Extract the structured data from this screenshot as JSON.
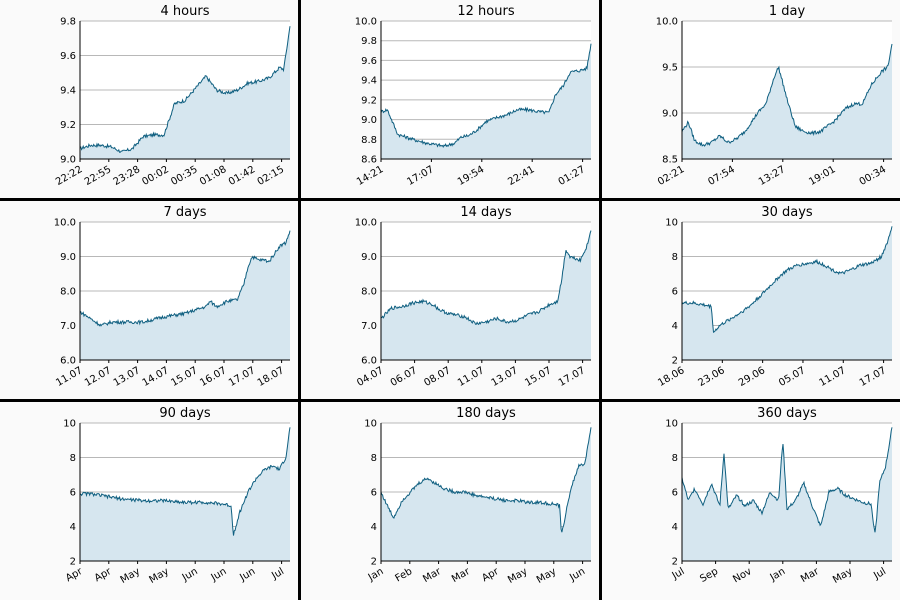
{
  "chart_data": [
    {
      "type": "area",
      "title": "4 hours",
      "ylim": [
        9.0,
        9.8
      ],
      "yticks": [
        "9.0",
        "9.2",
        "9.4",
        "9.6",
        "9.8"
      ],
      "xticks": [
        "22:22",
        "22:55",
        "23:28",
        "00:02",
        "00:35",
        "01:08",
        "01:42",
        "02:15"
      ],
      "x": [
        0,
        0.05,
        0.1,
        0.15,
        0.2,
        0.25,
        0.3,
        0.35,
        0.4,
        0.45,
        0.5,
        0.55,
        0.6,
        0.65,
        0.7,
        0.75,
        0.8,
        0.85,
        0.9,
        0.95,
        0.97,
        1.0
      ],
      "values": [
        9.06,
        9.08,
        9.08,
        9.07,
        9.04,
        9.06,
        9.13,
        9.14,
        9.14,
        9.32,
        9.34,
        9.41,
        9.48,
        9.4,
        9.38,
        9.4,
        9.44,
        9.45,
        9.47,
        9.53,
        9.52,
        9.77
      ]
    },
    {
      "type": "area",
      "title": "12 hours",
      "ylim": [
        8.6,
        10.0
      ],
      "yticks": [
        "8.6",
        "8.8",
        "9.0",
        "9.2",
        "9.4",
        "9.6",
        "9.8",
        "10.0"
      ],
      "xticks": [
        "14:21",
        "17:07",
        "19:54",
        "22:41",
        "01:27"
      ],
      "x": [
        0,
        0.03,
        0.08,
        0.15,
        0.22,
        0.3,
        0.35,
        0.38,
        0.42,
        0.46,
        0.5,
        0.55,
        0.6,
        0.65,
        0.7,
        0.75,
        0.8,
        0.83,
        0.87,
        0.9,
        0.95,
        0.98,
        1.0
      ],
      "values": [
        9.08,
        9.1,
        8.85,
        8.8,
        8.76,
        8.73,
        8.76,
        8.82,
        8.84,
        8.9,
        8.98,
        9.02,
        9.05,
        9.1,
        9.1,
        9.08,
        9.07,
        9.25,
        9.35,
        9.48,
        9.5,
        9.52,
        9.77
      ]
    },
    {
      "type": "area",
      "title": "1 day",
      "ylim": [
        8.5,
        10.0
      ],
      "yticks": [
        "8.5",
        "9.0",
        "9.5",
        "10.0"
      ],
      "xticks": [
        "02:21",
        "07:54",
        "13:27",
        "19:01",
        "00:34"
      ],
      "x": [
        0,
        0.03,
        0.06,
        0.1,
        0.14,
        0.18,
        0.22,
        0.26,
        0.3,
        0.36,
        0.4,
        0.44,
        0.46,
        0.5,
        0.54,
        0.58,
        0.62,
        0.66,
        0.72,
        0.78,
        0.82,
        0.86,
        0.9,
        0.95,
        0.98,
        1.0
      ],
      "values": [
        8.8,
        8.9,
        8.7,
        8.65,
        8.68,
        8.75,
        8.68,
        8.72,
        8.8,
        9.0,
        9.1,
        9.4,
        9.5,
        9.15,
        8.85,
        8.8,
        8.78,
        8.8,
        8.9,
        9.05,
        9.1,
        9.1,
        9.3,
        9.45,
        9.5,
        9.75
      ]
    },
    {
      "type": "area",
      "title": "7 days",
      "ylim": [
        6.0,
        10.0
      ],
      "yticks": [
        "6.0",
        "7.0",
        "8.0",
        "9.0",
        "10.0"
      ],
      "xticks": [
        "11.07",
        "12.07",
        "13.07",
        "14.07",
        "15.07",
        "16.07",
        "17.07",
        "18.07"
      ],
      "x": [
        0,
        0.05,
        0.1,
        0.15,
        0.2,
        0.3,
        0.4,
        0.5,
        0.55,
        0.6,
        0.62,
        0.65,
        0.7,
        0.75,
        0.78,
        0.8,
        0.82,
        0.85,
        0.88,
        0.9,
        0.95,
        0.98,
        1.0
      ],
      "values": [
        7.4,
        7.2,
        7.0,
        7.1,
        7.1,
        7.1,
        7.25,
        7.35,
        7.45,
        7.55,
        7.7,
        7.55,
        7.7,
        7.75,
        8.2,
        8.7,
        9.0,
        8.9,
        8.9,
        8.85,
        9.3,
        9.4,
        9.75
      ]
    },
    {
      "type": "area",
      "title": "14 days",
      "ylim": [
        6.0,
        10.0
      ],
      "yticks": [
        "6.0",
        "7.0",
        "8.0",
        "9.0",
        "10.0"
      ],
      "xticks": [
        "04.07",
        "06.07",
        "08.07",
        "11.07",
        "13.07",
        "15.07",
        "17.07"
      ],
      "x": [
        0,
        0.05,
        0.1,
        0.15,
        0.2,
        0.25,
        0.28,
        0.32,
        0.36,
        0.4,
        0.45,
        0.5,
        0.55,
        0.6,
        0.65,
        0.7,
        0.75,
        0.8,
        0.84,
        0.86,
        0.88,
        0.9,
        0.95,
        0.98,
        1.0
      ],
      "values": [
        7.2,
        7.5,
        7.55,
        7.65,
        7.7,
        7.6,
        7.45,
        7.35,
        7.3,
        7.25,
        7.05,
        7.1,
        7.2,
        7.1,
        7.15,
        7.3,
        7.4,
        7.6,
        7.7,
        8.3,
        9.2,
        9.0,
        8.9,
        9.3,
        9.75
      ]
    },
    {
      "type": "area",
      "title": "30 days",
      "ylim": [
        2,
        10
      ],
      "yticks": [
        "2",
        "4",
        "6",
        "8",
        "10"
      ],
      "xticks": [
        "18.06",
        "23.06",
        "29.06",
        "05.07",
        "11.07",
        "17.07"
      ],
      "x": [
        0,
        0.05,
        0.1,
        0.14,
        0.15,
        0.18,
        0.22,
        0.26,
        0.32,
        0.38,
        0.42,
        0.46,
        0.5,
        0.55,
        0.6,
        0.64,
        0.68,
        0.72,
        0.76,
        0.8,
        0.85,
        0.9,
        0.95,
        0.98,
        1.0
      ],
      "values": [
        5.3,
        5.3,
        5.2,
        5.1,
        3.6,
        4.0,
        4.3,
        4.6,
        5.1,
        5.8,
        6.3,
        6.8,
        7.2,
        7.5,
        7.6,
        7.7,
        7.5,
        7.2,
        7.0,
        7.2,
        7.5,
        7.6,
        8.0,
        8.9,
        9.75
      ]
    },
    {
      "type": "area",
      "title": "90 days",
      "ylim": [
        2,
        10
      ],
      "yticks": [
        "2",
        "4",
        "6",
        "8",
        "10"
      ],
      "xticks": [
        "Apr",
        "Apr",
        "May",
        "May",
        "Jun",
        "Jun",
        "Jun",
        "Jul"
      ],
      "x": [
        0,
        0.05,
        0.1,
        0.2,
        0.3,
        0.4,
        0.5,
        0.6,
        0.68,
        0.72,
        0.73,
        0.76,
        0.8,
        0.84,
        0.88,
        0.92,
        0.95,
        0.98,
        1.0
      ],
      "values": [
        5.9,
        5.9,
        5.8,
        5.6,
        5.5,
        5.5,
        5.4,
        5.4,
        5.3,
        5.2,
        3.5,
        4.8,
        6.0,
        6.8,
        7.3,
        7.5,
        7.3,
        8.0,
        9.75
      ]
    },
    {
      "type": "area",
      "title": "180 days",
      "ylim": [
        2,
        10
      ],
      "yticks": [
        "2",
        "4",
        "6",
        "8",
        "10"
      ],
      "xticks": [
        "Jan",
        "Feb",
        "Mar",
        "Mar",
        "Apr",
        "May",
        "May",
        "Jun"
      ],
      "x": [
        0,
        0.03,
        0.06,
        0.1,
        0.14,
        0.18,
        0.22,
        0.26,
        0.3,
        0.35,
        0.4,
        0.45,
        0.5,
        0.55,
        0.6,
        0.65,
        0.7,
        0.75,
        0.82,
        0.85,
        0.86,
        0.9,
        0.94,
        0.97,
        1.0
      ],
      "values": [
        6.0,
        5.2,
        4.5,
        5.5,
        6.0,
        6.5,
        6.8,
        6.5,
        6.2,
        6.0,
        6.0,
        5.8,
        5.7,
        5.6,
        5.5,
        5.5,
        5.4,
        5.4,
        5.3,
        5.2,
        3.5,
        6.0,
        7.5,
        7.6,
        9.75
      ]
    },
    {
      "type": "area",
      "title": "360 days",
      "ylim": [
        2,
        10
      ],
      "yticks": [
        "2",
        "4",
        "6",
        "8",
        "10"
      ],
      "xticks": [
        "Jul",
        "Sep",
        "Nov",
        "Jan",
        "Mar",
        "May",
        "Jul"
      ],
      "x": [
        0,
        0.03,
        0.06,
        0.1,
        0.14,
        0.18,
        0.2,
        0.22,
        0.26,
        0.3,
        0.34,
        0.38,
        0.42,
        0.46,
        0.48,
        0.5,
        0.54,
        0.58,
        0.62,
        0.66,
        0.7,
        0.74,
        0.78,
        0.82,
        0.86,
        0.9,
        0.92,
        0.94,
        0.97,
        1.0
      ],
      "values": [
        6.8,
        5.5,
        6.2,
        5.3,
        6.5,
        5.2,
        8.3,
        5.0,
        5.8,
        5.2,
        5.5,
        4.8,
        6.0,
        5.5,
        9.0,
        5.0,
        5.5,
        6.5,
        5.2,
        4.0,
        6.0,
        6.2,
        5.8,
        5.6,
        5.4,
        5.3,
        3.5,
        6.5,
        7.5,
        9.75
      ]
    }
  ]
}
